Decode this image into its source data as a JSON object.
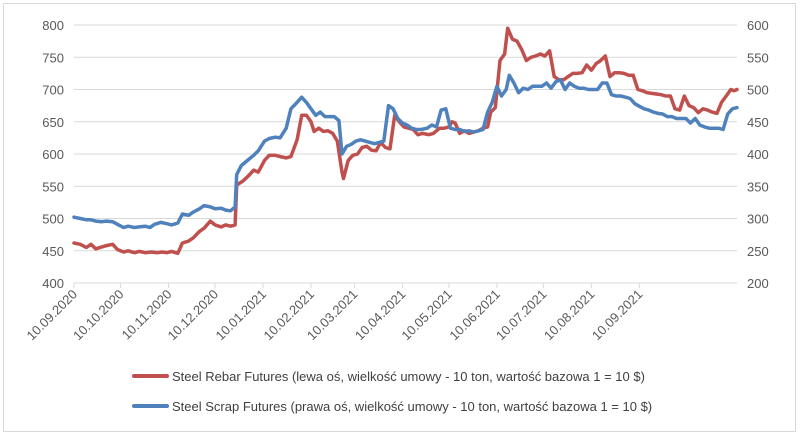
{
  "chart_data": {
    "type": "line",
    "title": "",
    "x_categories": [
      "10.09.2020",
      "10.10.2020",
      "10.11.2020",
      "10.12.2020",
      "10.01.2021",
      "10.02.2021",
      "10.03.2021",
      "10.04.2021",
      "10.05.2021",
      "10.06.2021",
      "10.07.2021",
      "10.08.2021",
      "10.09.2021"
    ],
    "x_range": [
      "10.09.2020",
      "2021-09-24"
    ],
    "y_left": {
      "ylim": [
        400,
        800
      ],
      "ticks": [
        "400",
        "450",
        "500",
        "550",
        "600",
        "650",
        "700",
        "750",
        "800"
      ]
    },
    "y_right": {
      "ylim": [
        200,
        600
      ],
      "ticks": [
        "200",
        "250",
        "300",
        "350",
        "400",
        "450",
        "500",
        "550",
        "600"
      ]
    },
    "grid": "horizontal",
    "legend_position": "bottom",
    "series": [
      {
        "name": "Steel Rebar Futures (lewa oś, wielkość umowy - 10 ton, wartość bazowa 1 = 10 $)",
        "axis": "left",
        "color": "#c0504d",
        "points": [
          [
            "2020-09-10",
            462
          ],
          [
            "2020-09-14",
            460
          ],
          [
            "2020-09-18",
            455
          ],
          [
            "2020-09-21",
            460
          ],
          [
            "2020-09-24",
            453
          ],
          [
            "2020-09-28",
            456
          ],
          [
            "2020-10-01",
            458
          ],
          [
            "2020-10-05",
            460
          ],
          [
            "2020-10-08",
            452
          ],
          [
            "2020-10-12",
            448
          ],
          [
            "2020-10-15",
            450
          ],
          [
            "2020-10-19",
            447
          ],
          [
            "2020-10-22",
            449
          ],
          [
            "2020-10-26",
            447
          ],
          [
            "2020-10-30",
            448
          ],
          [
            "2020-11-03",
            447
          ],
          [
            "2020-11-06",
            448
          ],
          [
            "2020-11-09",
            447
          ],
          [
            "2020-11-12",
            449
          ],
          [
            "2020-11-16",
            446
          ],
          [
            "2020-11-19",
            462
          ],
          [
            "2020-11-23",
            465
          ],
          [
            "2020-11-26",
            470
          ],
          [
            "2020-11-30",
            480
          ],
          [
            "2020-12-03",
            485
          ],
          [
            "2020-12-07",
            496
          ],
          [
            "2020-12-10",
            490
          ],
          [
            "2020-12-14",
            487
          ],
          [
            "2020-12-17",
            490
          ],
          [
            "2020-12-20",
            488
          ],
          [
            "2020-12-23",
            490
          ],
          [
            "2020-12-24",
            552
          ],
          [
            "2020-12-28",
            558
          ],
          [
            "2021-01-01",
            567
          ],
          [
            "2021-01-04",
            575
          ],
          [
            "2021-01-07",
            572
          ],
          [
            "2021-01-11",
            590
          ],
          [
            "2021-01-14",
            598
          ],
          [
            "2021-01-18",
            598
          ],
          [
            "2021-01-21",
            596
          ],
          [
            "2021-01-25",
            594
          ],
          [
            "2021-01-28",
            596
          ],
          [
            "2021-02-01",
            622
          ],
          [
            "2021-02-04",
            660
          ],
          [
            "2021-02-07",
            660
          ],
          [
            "2021-02-10",
            650
          ],
          [
            "2021-02-12",
            635
          ],
          [
            "2021-02-15",
            640
          ],
          [
            "2021-02-18",
            635
          ],
          [
            "2021-02-21",
            636
          ],
          [
            "2021-02-24",
            632
          ],
          [
            "2021-02-27",
            620
          ],
          [
            "2021-03-02",
            572
          ],
          [
            "2021-03-03",
            562
          ],
          [
            "2021-03-06",
            590
          ],
          [
            "2021-03-09",
            598
          ],
          [
            "2021-03-12",
            600
          ],
          [
            "2021-03-15",
            610
          ],
          [
            "2021-03-18",
            612
          ],
          [
            "2021-03-21",
            606
          ],
          [
            "2021-03-24",
            605
          ],
          [
            "2021-03-27",
            618
          ],
          [
            "2021-03-30",
            610
          ],
          [
            "2021-04-02",
            608
          ],
          [
            "2021-04-05",
            660
          ],
          [
            "2021-04-08",
            650
          ],
          [
            "2021-04-11",
            642
          ],
          [
            "2021-04-14",
            640
          ],
          [
            "2021-04-17",
            638
          ],
          [
            "2021-04-20",
            630
          ],
          [
            "2021-04-23",
            632
          ],
          [
            "2021-04-27",
            630
          ],
          [
            "2021-04-30",
            632
          ],
          [
            "2021-05-04",
            640
          ],
          [
            "2021-05-07",
            640
          ],
          [
            "2021-05-10",
            642
          ],
          [
            "2021-05-12",
            650
          ],
          [
            "2021-05-14",
            648
          ],
          [
            "2021-05-17",
            632
          ],
          [
            "2021-05-20",
            636
          ],
          [
            "2021-05-23",
            632
          ],
          [
            "2021-05-26",
            634
          ],
          [
            "2021-05-29",
            636
          ],
          [
            "2021-06-01",
            640
          ],
          [
            "2021-06-04",
            642
          ],
          [
            "2021-06-06",
            665
          ],
          [
            "2021-06-09",
            672
          ],
          [
            "2021-06-12",
            745
          ],
          [
            "2021-06-15",
            755
          ],
          [
            "2021-06-17",
            795
          ],
          [
            "2021-06-20",
            778
          ],
          [
            "2021-06-23",
            775
          ],
          [
            "2021-06-26",
            762
          ],
          [
            "2021-06-29",
            745
          ],
          [
            "2021-07-02",
            750
          ],
          [
            "2021-07-05",
            752
          ],
          [
            "2021-07-08",
            755
          ],
          [
            "2021-07-11",
            752
          ],
          [
            "2021-07-14",
            760
          ],
          [
            "2021-07-17",
            720
          ],
          [
            "2021-07-20",
            715
          ],
          [
            "2021-07-23",
            715
          ],
          [
            "2021-07-26",
            720
          ],
          [
            "2021-07-29",
            725
          ],
          [
            "2021-08-01",
            725
          ],
          [
            "2021-08-04",
            726
          ],
          [
            "2021-08-07",
            738
          ],
          [
            "2021-08-10",
            730
          ],
          [
            "2021-08-13",
            740
          ],
          [
            "2021-08-16",
            745
          ],
          [
            "2021-08-19",
            752
          ],
          [
            "2021-08-22",
            720
          ],
          [
            "2021-08-25",
            726
          ],
          [
            "2021-08-28",
            726
          ],
          [
            "2021-08-31",
            725
          ],
          [
            "2021-09-03",
            722
          ],
          [
            "2021-09-06",
            722
          ],
          [
            "2021-09-09",
            700
          ],
          [
            "2021-09-12",
            698
          ],
          [
            "2021-09-15",
            695
          ],
          [
            "2021-09-18",
            694
          ],
          [
            "2021-09-21",
            693
          ],
          [
            "2021-09-24",
            692
          ],
          [
            "2021-09-27",
            690
          ],
          [
            "2021-09-30",
            690
          ],
          [
            "2021-10-03",
            670
          ],
          [
            "2021-10-06",
            668
          ],
          [
            "2021-10-09",
            690
          ],
          [
            "2021-10-12",
            675
          ],
          [
            "2021-10-15",
            672
          ],
          [
            "2021-10-18",
            664
          ],
          [
            "2021-10-21",
            670
          ],
          [
            "2021-10-24",
            668
          ],
          [
            "2021-10-27",
            665
          ],
          [
            "2021-10-30",
            663
          ],
          [
            "2021-11-02",
            680
          ],
          [
            "2021-11-05",
            690
          ],
          [
            "2021-11-08",
            700
          ],
          [
            "2021-11-10",
            698
          ],
          [
            "2021-11-12",
            700
          ]
        ]
      },
      {
        "name": "Steel Scrap Futures (prawa oś, wielkość umowy - 10 ton, wartość bazowa 1 = 10 $)",
        "axis": "right",
        "color": "#4f81bd",
        "points": [
          [
            "2020-09-10",
            302
          ],
          [
            "2020-09-14",
            300
          ],
          [
            "2020-09-18",
            298
          ],
          [
            "2020-09-21",
            298
          ],
          [
            "2020-09-24",
            296
          ],
          [
            "2020-09-28",
            295
          ],
          [
            "2020-10-01",
            296
          ],
          [
            "2020-10-05",
            295
          ],
          [
            "2020-10-08",
            291
          ],
          [
            "2020-10-12",
            286
          ],
          [
            "2020-10-15",
            288
          ],
          [
            "2020-10-19",
            286
          ],
          [
            "2020-10-22",
            287
          ],
          [
            "2020-10-26",
            288
          ],
          [
            "2020-10-29",
            286
          ],
          [
            "2020-11-01",
            291
          ],
          [
            "2020-11-05",
            294
          ],
          [
            "2020-11-09",
            292
          ],
          [
            "2020-11-12",
            290
          ],
          [
            "2020-11-16",
            293
          ],
          [
            "2020-11-19",
            307
          ],
          [
            "2020-11-23",
            305
          ],
          [
            "2020-11-26",
            310
          ],
          [
            "2020-11-30",
            315
          ],
          [
            "2020-12-03",
            320
          ],
          [
            "2020-12-07",
            318
          ],
          [
            "2020-12-10",
            315
          ],
          [
            "2020-12-14",
            316
          ],
          [
            "2020-12-17",
            313
          ],
          [
            "2020-12-20",
            312
          ],
          [
            "2020-12-23",
            318
          ],
          [
            "2020-12-24",
            368
          ],
          [
            "2020-12-27",
            382
          ],
          [
            "2020-12-31",
            390
          ],
          [
            "2021-01-04",
            398
          ],
          [
            "2021-01-07",
            405
          ],
          [
            "2021-01-11",
            420
          ],
          [
            "2021-01-14",
            424
          ],
          [
            "2021-01-18",
            426
          ],
          [
            "2021-01-21",
            425
          ],
          [
            "2021-01-25",
            440
          ],
          [
            "2021-01-28",
            470
          ],
          [
            "2021-02-01",
            480
          ],
          [
            "2021-02-04",
            488
          ],
          [
            "2021-02-07",
            480
          ],
          [
            "2021-02-10",
            470
          ],
          [
            "2021-02-13",
            460
          ],
          [
            "2021-02-16",
            465
          ],
          [
            "2021-02-19",
            458
          ],
          [
            "2021-02-22",
            458
          ],
          [
            "2021-02-25",
            458
          ],
          [
            "2021-02-28",
            452
          ],
          [
            "2021-03-02",
            400
          ],
          [
            "2021-03-05",
            412
          ],
          [
            "2021-03-08",
            415
          ],
          [
            "2021-03-11",
            420
          ],
          [
            "2021-03-14",
            422
          ],
          [
            "2021-03-17",
            420
          ],
          [
            "2021-03-20",
            418
          ],
          [
            "2021-03-23",
            416
          ],
          [
            "2021-03-26",
            418
          ],
          [
            "2021-03-29",
            420
          ],
          [
            "2021-04-01",
            475
          ],
          [
            "2021-04-04",
            470
          ],
          [
            "2021-04-07",
            455
          ],
          [
            "2021-04-10",
            448
          ],
          [
            "2021-04-13",
            445
          ],
          [
            "2021-04-16",
            440
          ],
          [
            "2021-04-19",
            438
          ],
          [
            "2021-04-22",
            438
          ],
          [
            "2021-04-26",
            440
          ],
          [
            "2021-04-29",
            445
          ],
          [
            "2021-05-02",
            442
          ],
          [
            "2021-05-05",
            468
          ],
          [
            "2021-05-08",
            470
          ],
          [
            "2021-05-11",
            440
          ],
          [
            "2021-05-14",
            438
          ],
          [
            "2021-05-17",
            438
          ],
          [
            "2021-05-20",
            435
          ],
          [
            "2021-05-23",
            436
          ],
          [
            "2021-05-26",
            434
          ],
          [
            "2021-05-29",
            436
          ],
          [
            "2021-06-01",
            438
          ],
          [
            "2021-06-04",
            465
          ],
          [
            "2021-06-07",
            480
          ],
          [
            "2021-06-10",
            505
          ],
          [
            "2021-06-13",
            490
          ],
          [
            "2021-06-16",
            500
          ],
          [
            "2021-06-18",
            522
          ],
          [
            "2021-06-21",
            510
          ],
          [
            "2021-06-24",
            495
          ],
          [
            "2021-06-27",
            502
          ],
          [
            "2021-06-30",
            500
          ],
          [
            "2021-07-03",
            505
          ],
          [
            "2021-07-06",
            505
          ],
          [
            "2021-07-09",
            505
          ],
          [
            "2021-07-12",
            510
          ],
          [
            "2021-07-15",
            502
          ],
          [
            "2021-07-18",
            512
          ],
          [
            "2021-07-21",
            515
          ],
          [
            "2021-07-24",
            500
          ],
          [
            "2021-07-27",
            510
          ],
          [
            "2021-07-30",
            505
          ],
          [
            "2021-08-02",
            502
          ],
          [
            "2021-08-05",
            502
          ],
          [
            "2021-08-08",
            500
          ],
          [
            "2021-08-11",
            500
          ],
          [
            "2021-08-14",
            500
          ],
          [
            "2021-08-17",
            510
          ],
          [
            "2021-08-20",
            510
          ],
          [
            "2021-08-23",
            492
          ],
          [
            "2021-08-26",
            490
          ],
          [
            "2021-08-29",
            490
          ],
          [
            "2021-09-01",
            488
          ],
          [
            "2021-09-04",
            486
          ],
          [
            "2021-09-07",
            478
          ],
          [
            "2021-09-10",
            474
          ],
          [
            "2021-09-13",
            470
          ],
          [
            "2021-09-16",
            468
          ],
          [
            "2021-09-19",
            465
          ],
          [
            "2021-09-22",
            463
          ],
          [
            "2021-09-25",
            462
          ],
          [
            "2021-09-28",
            458
          ],
          [
            "2021-10-01",
            458
          ],
          [
            "2021-10-04",
            455
          ],
          [
            "2021-10-07",
            455
          ],
          [
            "2021-10-10",
            455
          ],
          [
            "2021-10-13",
            448
          ],
          [
            "2021-10-16",
            455
          ],
          [
            "2021-10-19",
            445
          ],
          [
            "2021-10-22",
            442
          ],
          [
            "2021-10-25",
            440
          ],
          [
            "2021-10-28",
            440
          ],
          [
            "2021-10-31",
            440
          ],
          [
            "2021-11-03",
            438
          ],
          [
            "2021-11-06",
            462
          ],
          [
            "2021-11-09",
            470
          ],
          [
            "2021-11-12",
            472
          ]
        ]
      }
    ]
  }
}
